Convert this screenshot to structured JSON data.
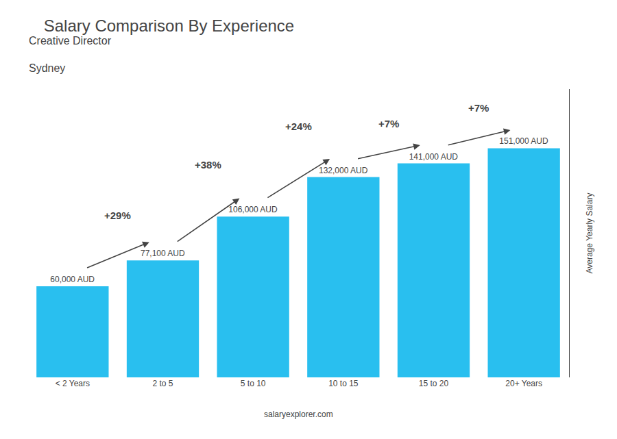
{
  "chart_data": {
    "type": "bar",
    "title": "Salary Comparison By Experience",
    "subtitle": "Creative Director",
    "city": "Sydney",
    "ylabel": "Average Yearly Salary",
    "categories": [
      "< 2 Years",
      "2 to 5",
      "5 to 10",
      "10 to 15",
      "15 to 20",
      "20+ Years"
    ],
    "values": [
      60000,
      77100,
      106000,
      132000,
      141000,
      151000
    ],
    "value_labels": [
      "60,000 AUD",
      "77,100 AUD",
      "106,000 AUD",
      "132,000 AUD",
      "141,000 AUD",
      "151,000 AUD"
    ],
    "annotations": [
      "+29%",
      "+38%",
      "+24%",
      "+7%",
      "+7%"
    ],
    "watermark": "salaryexplorer.com",
    "color": "#29BFEF",
    "ylim": [
      0,
      190000
    ],
    "tick_labels": "x",
    "grid": false,
    "data_labels": true
  }
}
